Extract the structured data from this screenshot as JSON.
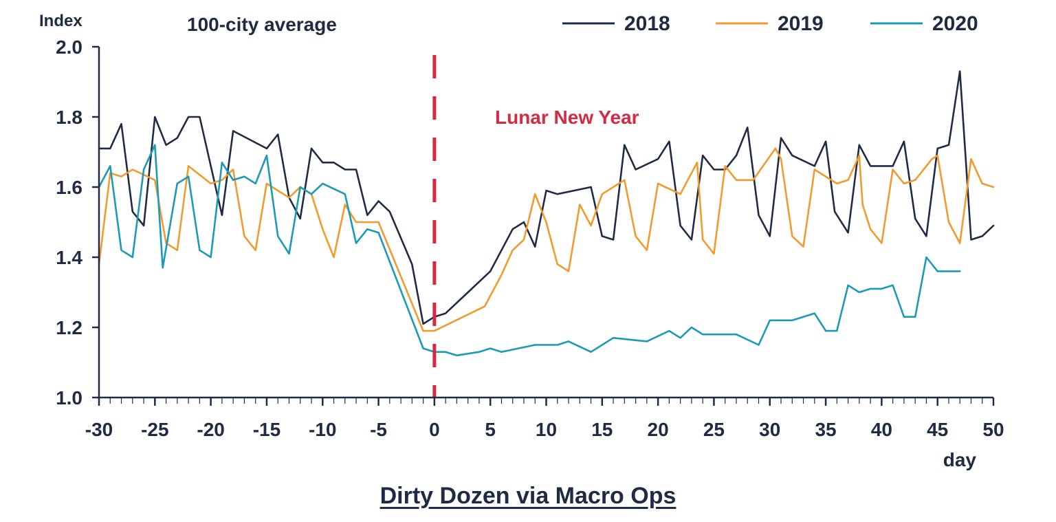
{
  "chart_data": {
    "type": "line",
    "title": "100-city average",
    "ylabel": "Index",
    "xlabel": "day",
    "xlim": [
      -30,
      50
    ],
    "ylim": [
      1.0,
      2.0
    ],
    "x_ticks": [
      -30,
      -25,
      -20,
      -15,
      -10,
      -5,
      0,
      5,
      10,
      15,
      20,
      25,
      30,
      35,
      40,
      45,
      50
    ],
    "x_tick_labels": [
      "-30",
      "-25",
      "-20",
      "-15",
      "-10",
      "-5",
      "0",
      "5",
      "10",
      "15",
      "20",
      "25",
      "30",
      "35",
      "40",
      "45",
      "50"
    ],
    "y_ticks": [
      1.0,
      1.2,
      1.4,
      1.6,
      1.8,
      2.0
    ],
    "y_tick_labels": [
      "1.0",
      "1.2",
      "1.4",
      "1.6",
      "1.8",
      "2.0"
    ],
    "legend_position": "top-right",
    "grid": false,
    "annotation": {
      "text": "Lunar New Year",
      "x": 0,
      "color": "#d42a44"
    },
    "series": [
      {
        "name": "2018",
        "color": "#1f2a44",
        "points": [
          [
            -30,
            1.71
          ],
          [
            -29,
            1.71
          ],
          [
            -28,
            1.78
          ],
          [
            -27,
            1.53
          ],
          [
            -26,
            1.49
          ],
          [
            -25,
            1.8
          ],
          [
            -24,
            1.72
          ],
          [
            -23,
            1.74
          ],
          [
            -22,
            1.8
          ],
          [
            -21,
            1.8
          ],
          [
            -19,
            1.52
          ],
          [
            -18,
            1.76
          ],
          [
            -15,
            1.71
          ],
          [
            -14,
            1.75
          ],
          [
            -13,
            1.57
          ],
          [
            -12,
            1.51
          ],
          [
            -11,
            1.71
          ],
          [
            -10,
            1.67
          ],
          [
            -9,
            1.67
          ],
          [
            -8,
            1.65
          ],
          [
            -7,
            1.65
          ],
          [
            -6,
            1.52
          ],
          [
            -5,
            1.56
          ],
          [
            -4,
            1.53
          ],
          [
            -2,
            1.38
          ],
          [
            -1,
            1.21
          ],
          [
            0,
            1.23
          ],
          [
            1,
            1.24
          ],
          [
            3,
            1.3
          ],
          [
            5,
            1.36
          ],
          [
            7,
            1.48
          ],
          [
            8,
            1.5
          ],
          [
            9,
            1.43
          ],
          [
            10,
            1.59
          ],
          [
            11,
            1.58
          ],
          [
            14,
            1.6
          ],
          [
            15,
            1.46
          ],
          [
            16,
            1.45
          ],
          [
            17,
            1.72
          ],
          [
            18,
            1.65
          ],
          [
            20,
            1.68
          ],
          [
            21,
            1.73
          ],
          [
            22,
            1.49
          ],
          [
            23,
            1.45
          ],
          [
            24,
            1.69
          ],
          [
            25,
            1.65
          ],
          [
            26,
            1.65
          ],
          [
            27,
            1.69
          ],
          [
            28,
            1.77
          ],
          [
            29,
            1.52
          ],
          [
            30,
            1.46
          ],
          [
            31,
            1.74
          ],
          [
            32,
            1.69
          ],
          [
            34,
            1.66
          ],
          [
            35,
            1.73
          ],
          [
            35.8,
            1.53
          ],
          [
            37,
            1.47
          ],
          [
            38,
            1.72
          ],
          [
            39,
            1.66
          ],
          [
            41,
            1.66
          ],
          [
            42,
            1.73
          ],
          [
            43,
            1.51
          ],
          [
            44,
            1.46
          ],
          [
            45,
            1.71
          ],
          [
            46,
            1.72
          ],
          [
            47,
            1.93
          ],
          [
            48,
            1.45
          ],
          [
            49,
            1.46
          ],
          [
            50,
            1.49
          ]
        ]
      },
      {
        "name": "2019",
        "color": "#f29a2e",
        "points": [
          [
            -30,
            1.38
          ],
          [
            -29,
            1.64
          ],
          [
            -28,
            1.63
          ],
          [
            -27,
            1.65
          ],
          [
            -25,
            1.62
          ],
          [
            -24,
            1.44
          ],
          [
            -23,
            1.42
          ],
          [
            -22,
            1.66
          ],
          [
            -20,
            1.61
          ],
          [
            -19,
            1.62
          ],
          [
            -18,
            1.65
          ],
          [
            -17,
            1.46
          ],
          [
            -16,
            1.42
          ],
          [
            -15,
            1.61
          ],
          [
            -13,
            1.57
          ],
          [
            -12,
            1.6
          ],
          [
            -11,
            1.58
          ],
          [
            -10,
            1.48
          ],
          [
            -9,
            1.4
          ],
          [
            -8,
            1.55
          ],
          [
            -7,
            1.5
          ],
          [
            -5,
            1.5
          ],
          [
            -1,
            1.19
          ],
          [
            0,
            1.19
          ],
          [
            4.5,
            1.26
          ],
          [
            6,
            1.35
          ],
          [
            7,
            1.42
          ],
          [
            8,
            1.45
          ],
          [
            9,
            1.58
          ],
          [
            10,
            1.5
          ],
          [
            11,
            1.38
          ],
          [
            12,
            1.36
          ],
          [
            13,
            1.55
          ],
          [
            14,
            1.49
          ],
          [
            15,
            1.58
          ],
          [
            17,
            1.62
          ],
          [
            18,
            1.46
          ],
          [
            19,
            1.42
          ],
          [
            20,
            1.61
          ],
          [
            22,
            1.58
          ],
          [
            23.5,
            1.67
          ],
          [
            24,
            1.45
          ],
          [
            25,
            1.41
          ],
          [
            26,
            1.66
          ],
          [
            27,
            1.62
          ],
          [
            28.5,
            1.62
          ],
          [
            30.5,
            1.71
          ],
          [
            31,
            1.68
          ],
          [
            32,
            1.46
          ],
          [
            33,
            1.43
          ],
          [
            34,
            1.65
          ],
          [
            36,
            1.61
          ],
          [
            37,
            1.62
          ],
          [
            38,
            1.69
          ],
          [
            38.3,
            1.55
          ],
          [
            39,
            1.48
          ],
          [
            40,
            1.44
          ],
          [
            41,
            1.65
          ],
          [
            42,
            1.61
          ],
          [
            43,
            1.62
          ],
          [
            44.5,
            1.68
          ],
          [
            45,
            1.69
          ],
          [
            46,
            1.5
          ],
          [
            47,
            1.44
          ],
          [
            48,
            1.68
          ],
          [
            49,
            1.61
          ],
          [
            50,
            1.6
          ]
        ]
      },
      {
        "name": "2020",
        "color": "#1a9bb5",
        "points": [
          [
            -30,
            1.6
          ],
          [
            -29,
            1.66
          ],
          [
            -28,
            1.42
          ],
          [
            -27,
            1.4
          ],
          [
            -26,
            1.65
          ],
          [
            -25,
            1.72
          ],
          [
            -24.3,
            1.37
          ],
          [
            -23,
            1.61
          ],
          [
            -22,
            1.63
          ],
          [
            -21,
            1.42
          ],
          [
            -20,
            1.4
          ],
          [
            -19,
            1.67
          ],
          [
            -18,
            1.62
          ],
          [
            -17,
            1.63
          ],
          [
            -16,
            1.61
          ],
          [
            -15,
            1.69
          ],
          [
            -14,
            1.46
          ],
          [
            -13,
            1.41
          ],
          [
            -12,
            1.6
          ],
          [
            -11,
            1.58
          ],
          [
            -10,
            1.61
          ],
          [
            -8,
            1.58
          ],
          [
            -7,
            1.44
          ],
          [
            -6,
            1.48
          ],
          [
            -5,
            1.47
          ],
          [
            -1,
            1.14
          ],
          [
            0,
            1.13
          ],
          [
            1,
            1.13
          ],
          [
            2,
            1.12
          ],
          [
            4,
            1.13
          ],
          [
            5,
            1.14
          ],
          [
            6,
            1.13
          ],
          [
            9,
            1.15
          ],
          [
            11,
            1.15
          ],
          [
            12,
            1.16
          ],
          [
            14,
            1.13
          ],
          [
            16,
            1.17
          ],
          [
            19,
            1.16
          ],
          [
            21,
            1.19
          ],
          [
            22,
            1.17
          ],
          [
            23,
            1.2
          ],
          [
            24,
            1.18
          ],
          [
            26,
            1.18
          ],
          [
            27,
            1.18
          ],
          [
            29,
            1.15
          ],
          [
            30,
            1.22
          ],
          [
            32,
            1.22
          ],
          [
            34,
            1.24
          ],
          [
            35,
            1.19
          ],
          [
            36,
            1.19
          ],
          [
            37,
            1.32
          ],
          [
            38,
            1.3
          ],
          [
            39,
            1.31
          ],
          [
            40,
            1.31
          ],
          [
            41,
            1.32
          ],
          [
            42,
            1.23
          ],
          [
            43,
            1.23
          ],
          [
            44,
            1.4
          ],
          [
            45,
            1.36
          ],
          [
            47,
            1.36
          ]
        ]
      }
    ]
  },
  "footer": {
    "caption": "Dirty Dozen via Macro Ops"
  }
}
